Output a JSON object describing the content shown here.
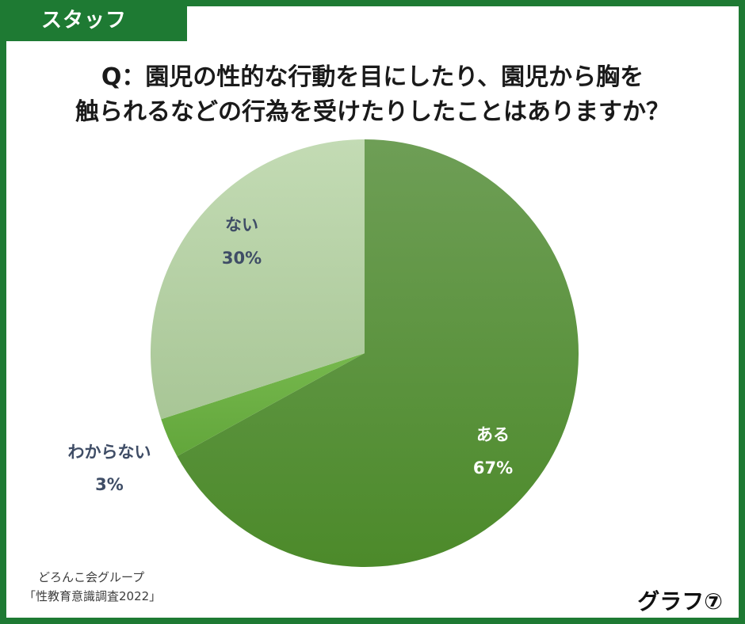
{
  "tag": {
    "label": "スタッフ"
  },
  "question": {
    "line1": "Q：園児の性的な行動を目にしたり、園児から胸を",
    "line2": "触られるなどの行為を受けたりしたことはありますか？"
  },
  "chart_data": {
    "type": "pie",
    "title": "Q：園児の性的な行動を目にしたり、園児から胸を触られるなどの行為を受けたりしたことはありますか？",
    "slices": [
      {
        "label": "ある",
        "value": 67,
        "value_label": "67%",
        "color": "#5a9a3c",
        "label_color": "#ffffff"
      },
      {
        "label": "わからない",
        "value": 3,
        "value_label": "3%",
        "color": "#6db045",
        "label_color": "#3f4d66"
      },
      {
        "label": "ない",
        "value": 30,
        "value_label": "30%",
        "color": "#b4d1a3",
        "label_color": "#3f4d66"
      }
    ],
    "start_angle_deg": 0,
    "direction": "clockwise"
  },
  "source": {
    "line1": "どろんこ会グループ",
    "line2": "「性教育意識調査2022」"
  },
  "graph_number": "グラフ⑦",
  "colors": {
    "frame": "#1e7a33",
    "tag_bg": "#1e7a33"
  }
}
